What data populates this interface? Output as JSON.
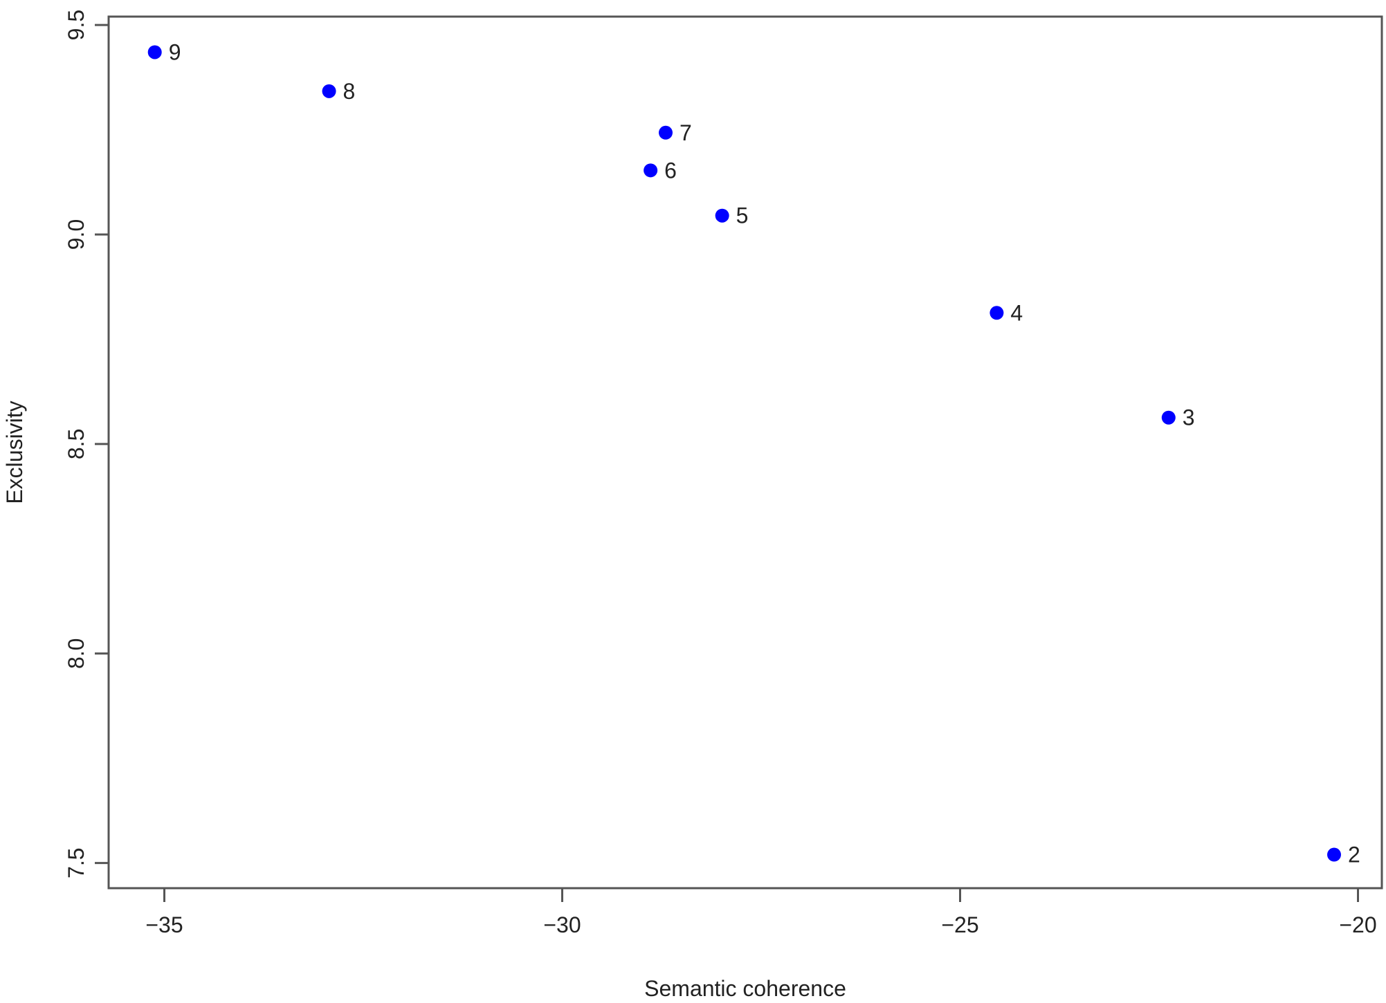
{
  "chart_data": {
    "type": "scatter",
    "xlabel": "Semantic coherence",
    "ylabel": "Exclusivity",
    "xlim": [
      -35.7,
      -19.7
    ],
    "ylim": [
      7.44,
      9.52
    ],
    "x_ticks": [
      -35,
      -30,
      -25,
      -20
    ],
    "x_tick_labels": [
      "−35",
      "−30",
      "−25",
      "−20"
    ],
    "y_ticks": [
      7.5,
      8.0,
      8.5,
      9.0,
      9.5
    ],
    "y_tick_labels": [
      "7.5",
      "8.0",
      "8.5",
      "9.0",
      "9.5"
    ],
    "grid": false,
    "point_color": "#0000ff",
    "points": [
      {
        "label": "9",
        "x": -35.12,
        "y": 9.435
      },
      {
        "label": "8",
        "x": -32.93,
        "y": 9.342
      },
      {
        "label": "7",
        "x": -28.7,
        "y": 9.243
      },
      {
        "label": "6",
        "x": -28.89,
        "y": 9.153
      },
      {
        "label": "5",
        "x": -27.99,
        "y": 9.045
      },
      {
        "label": "4",
        "x": -24.54,
        "y": 8.813
      },
      {
        "label": "3",
        "x": -22.38,
        "y": 8.563
      },
      {
        "label": "2",
        "x": -20.3,
        "y": 7.52
      }
    ]
  }
}
